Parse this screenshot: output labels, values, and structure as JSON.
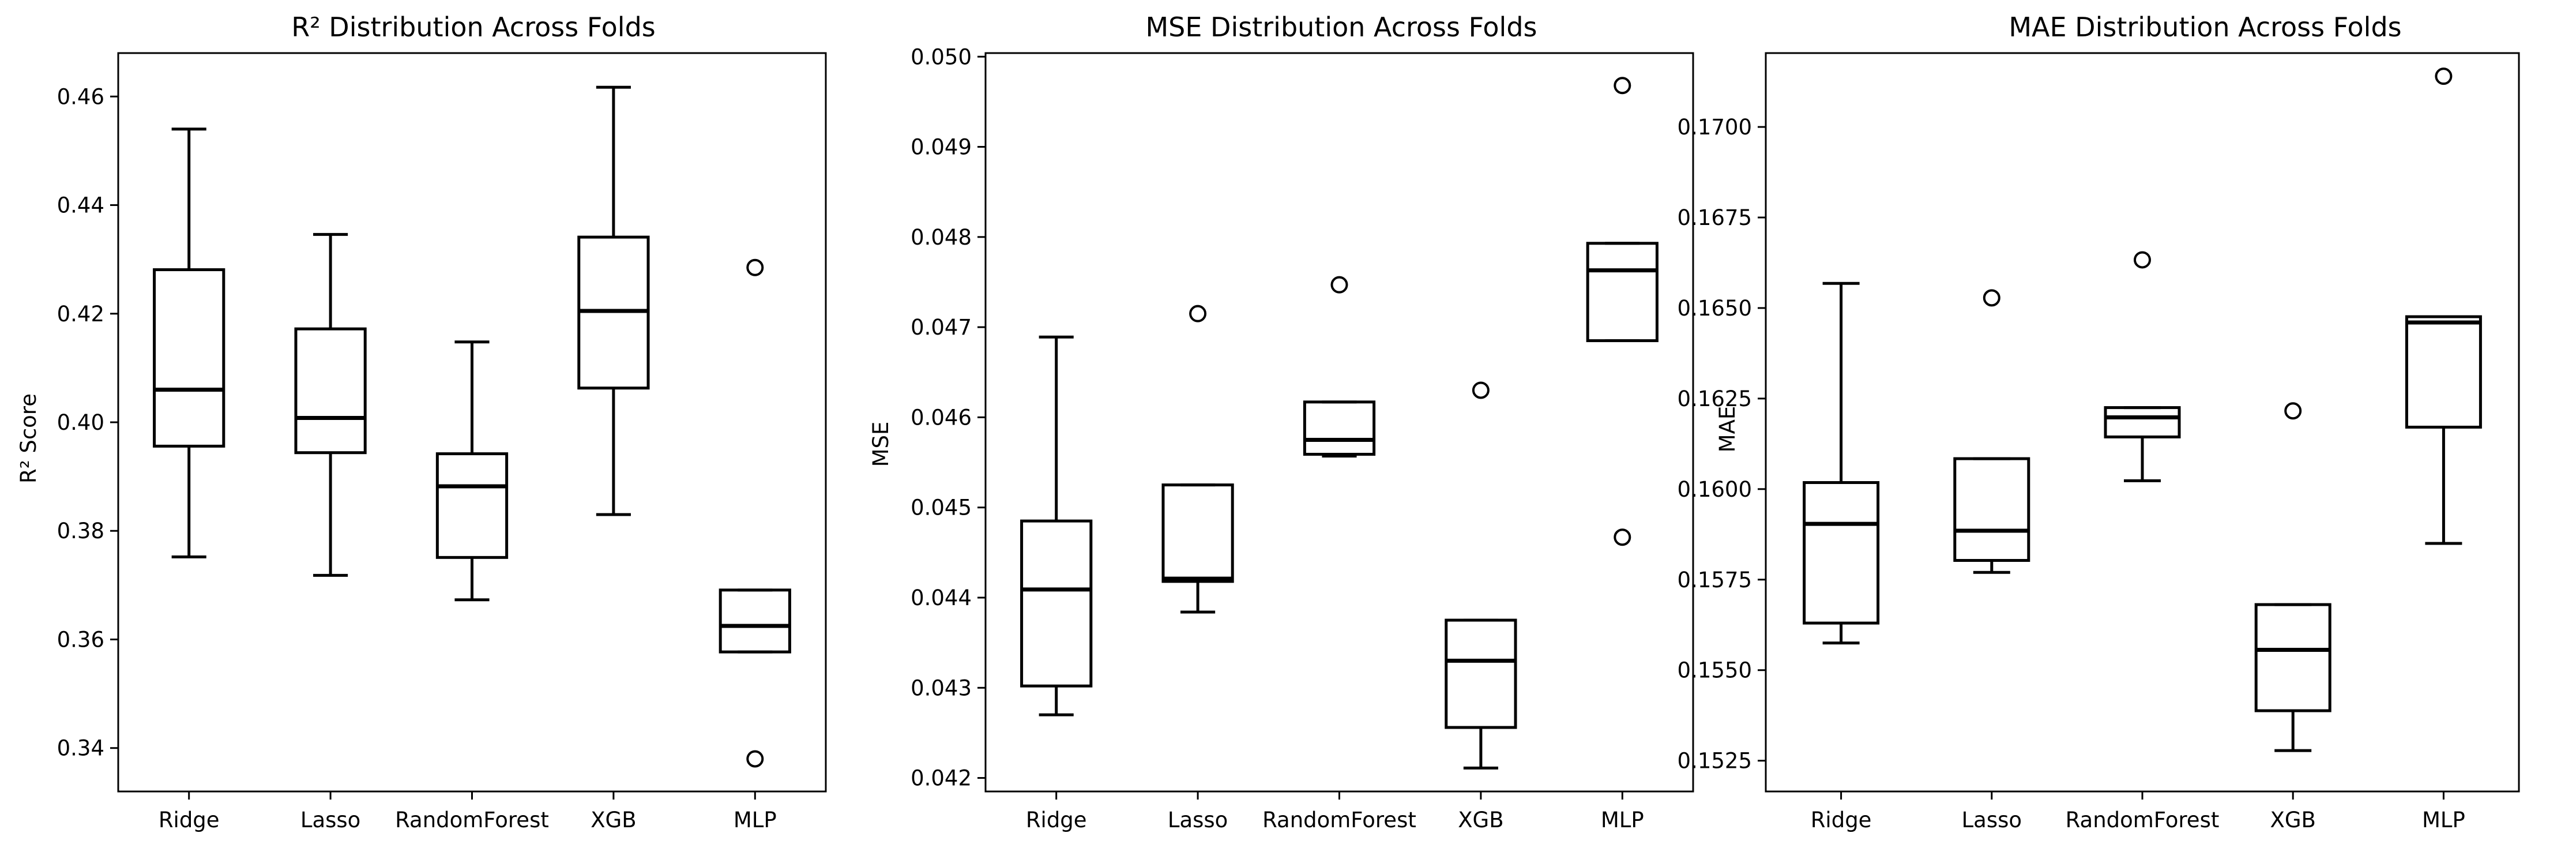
{
  "chart_data": [
    {
      "type": "boxplot",
      "title": "R² Distribution Across Folds",
      "xlabel": "",
      "ylabel": "R² Score",
      "categories": [
        "Ridge",
        "Lasso",
        "RandomForest",
        "XGB",
        "MLP"
      ],
      "ylim": [
        0.332,
        0.468
      ],
      "yticks": [
        0.34,
        0.36,
        0.38,
        0.4,
        0.42,
        0.44,
        0.46
      ],
      "ytick_labels": [
        "0.34",
        "0.36",
        "0.38",
        "0.40",
        "0.42",
        "0.44",
        "0.46"
      ],
      "boxes": [
        {
          "whislo": 0.3752,
          "q1": 0.3956,
          "med": 0.406,
          "q3": 0.4281,
          "whishi": 0.454,
          "fliers": []
        },
        {
          "whislo": 0.3718,
          "q1": 0.3944,
          "med": 0.4008,
          "q3": 0.4172,
          "whishi": 0.4346,
          "fliers": []
        },
        {
          "whislo": 0.3673,
          "q1": 0.3751,
          "med": 0.3882,
          "q3": 0.3942,
          "whishi": 0.4148,
          "fliers": []
        },
        {
          "whislo": 0.383,
          "q1": 0.4063,
          "med": 0.4205,
          "q3": 0.4341,
          "whishi": 0.4617,
          "fliers": []
        },
        {
          "whislo": 0.3577,
          "q1": 0.3577,
          "med": 0.3625,
          "q3": 0.3691,
          "whishi": 0.3691,
          "fliers": [
            0.4285,
            0.338
          ]
        }
      ]
    },
    {
      "type": "boxplot",
      "title": "MSE Distribution Across Folds",
      "xlabel": "",
      "ylabel": "MSE",
      "categories": [
        "Ridge",
        "Lasso",
        "RandomForest",
        "XGB",
        "MLP"
      ],
      "ylim": [
        0.04185,
        0.05004
      ],
      "yticks": [
        0.042,
        0.043,
        0.044,
        0.045,
        0.046,
        0.047,
        0.048,
        0.049,
        0.05
      ],
      "ytick_labels": [
        "0.042",
        "0.043",
        "0.044",
        "0.045",
        "0.046",
        "0.047",
        "0.048",
        "0.049",
        "0.050"
      ],
      "boxes": [
        {
          "whislo": 0.0427,
          "q1": 0.04302,
          "med": 0.04409,
          "q3": 0.04485,
          "whishi": 0.04689,
          "fliers": []
        },
        {
          "whislo": 0.04384,
          "q1": 0.04418,
          "med": 0.04421,
          "q3": 0.04525,
          "whishi": 0.04525,
          "fliers": [
            0.04715
          ]
        },
        {
          "whislo": 0.04557,
          "q1": 0.04559,
          "med": 0.04575,
          "q3": 0.04617,
          "whishi": 0.04617,
          "fliers": [
            0.04747
          ]
        },
        {
          "whislo": 0.04211,
          "q1": 0.04256,
          "med": 0.0433,
          "q3": 0.04375,
          "whishi": 0.04375,
          "fliers": [
            0.0463
          ]
        },
        {
          "whislo": 0.04685,
          "q1": 0.04685,
          "med": 0.04763,
          "q3": 0.04793,
          "whishi": 0.04793,
          "fliers": [
            0.04968,
            0.04467
          ]
        }
      ]
    },
    {
      "type": "boxplot",
      "title": "MAE Distribution Across Folds",
      "xlabel": "",
      "ylabel": "MAE",
      "categories": [
        "Ridge",
        "Lasso",
        "RandomForest",
        "XGB",
        "MLP"
      ],
      "ylim": [
        0.15165,
        0.17204
      ],
      "yticks": [
        0.1525,
        0.155,
        0.1575,
        0.16,
        0.1625,
        0.165,
        0.1675,
        0.17
      ],
      "ytick_labels": [
        "0.1525",
        "0.1550",
        "0.1575",
        "0.1600",
        "0.1625",
        "0.1650",
        "0.1675",
        "0.1700"
      ],
      "boxes": [
        {
          "whislo": 0.15575,
          "q1": 0.1563,
          "med": 0.15904,
          "q3": 0.16018,
          "whishi": 0.16568,
          "fliers": []
        },
        {
          "whislo": 0.1577,
          "q1": 0.15803,
          "med": 0.15885,
          "q3": 0.16084,
          "whishi": 0.16084,
          "fliers": [
            0.16528
          ]
        },
        {
          "whislo": 0.16023,
          "q1": 0.16144,
          "med": 0.16198,
          "q3": 0.16225,
          "whishi": 0.16225,
          "fliers": [
            0.16633
          ]
        },
        {
          "whislo": 0.15278,
          "q1": 0.15388,
          "med": 0.15556,
          "q3": 0.15681,
          "whishi": 0.15681,
          "fliers": [
            0.16216
          ]
        },
        {
          "whislo": 0.1585,
          "q1": 0.16171,
          "med": 0.1646,
          "q3": 0.16476,
          "whishi": 0.16476,
          "fliers": [
            0.1714
          ]
        }
      ]
    }
  ]
}
